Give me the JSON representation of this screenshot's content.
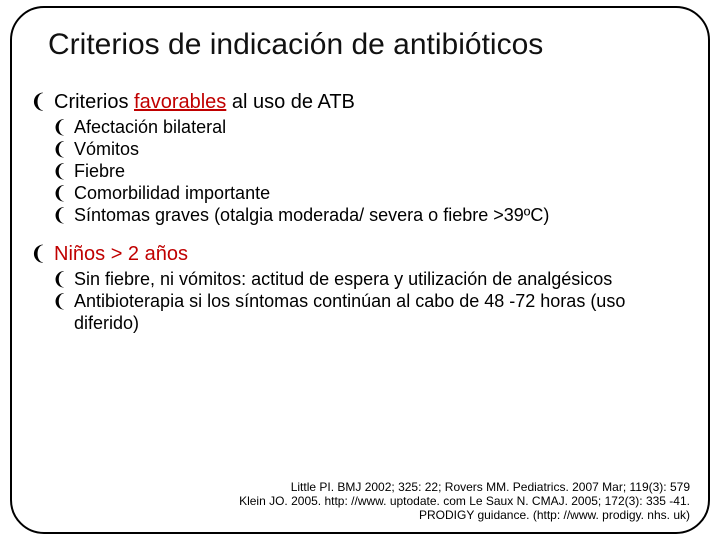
{
  "title": "Criterios de indicación de antibióticos",
  "bullet_glyph": "❨",
  "accent_color": "#c00000",
  "text_color": "#000000",
  "background_color": "#ffffff",
  "section1": {
    "prefix": "Criterios ",
    "highlight": "favorables",
    "suffix": " al uso de ATB",
    "items": [
      "Afectación bilateral",
      "Vómitos",
      "Fiebre",
      "Comorbilidad importante",
      "Síntomas graves (otalgia moderada/ severa o fiebre >39ºC)"
    ]
  },
  "section2": {
    "heading": "Niños > 2 años",
    "items": [
      "Sin fiebre, ni vómitos: actitud de espera y utilización de analgésicos",
      "Antibioterapia si los síntomas continúan al cabo de 48 -72 horas (uso diferido)"
    ]
  },
  "citation": {
    "line1": "Little PI. BMJ 2002; 325: 22; Rovers MM. Pediatrics. 2007 Mar; 119(3): 579",
    "line2": "Klein JO. 2005. http: //www. uptodate. com Le Saux N. CMAJ. 2005; 172(3): 335 -41.",
    "line3": "PRODIGY guidance. (http: //www. prodigy. nhs. uk)"
  }
}
